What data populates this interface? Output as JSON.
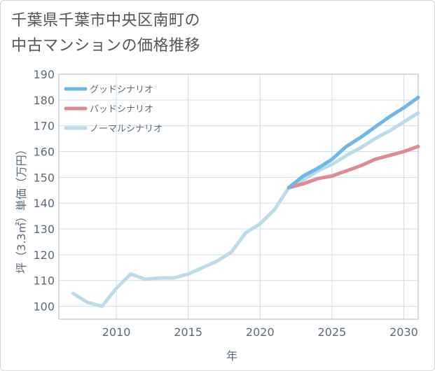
{
  "title": {
    "line1": "千葉県千葉市中央区南町の",
    "line2": "中古マンションの価格推移"
  },
  "chart_data": {
    "type": "line",
    "title": "千葉県千葉市中央区南町の中古マンションの価格推移",
    "xlabel": "年",
    "ylabel": "坪（3.3㎡）単価（万円）",
    "xlim": [
      2006,
      2031
    ],
    "ylim": [
      95,
      190
    ],
    "xticks": [
      2010,
      2015,
      2020,
      2025,
      2030
    ],
    "yticks": [
      100,
      110,
      120,
      130,
      140,
      150,
      160,
      170,
      180,
      190
    ],
    "grid": true,
    "legend_position": "top-left",
    "series": [
      {
        "name": "グッドシナリオ",
        "color": "#6cb8ea",
        "x": [
          2022,
          2023,
          2024,
          2025,
          2026,
          2027,
          2028,
          2029,
          2030,
          2031
        ],
        "values": [
          146,
          150.5,
          153.5,
          157,
          162,
          165.5,
          169.5,
          173.5,
          177,
          181
        ]
      },
      {
        "name": "バッドシナリオ",
        "color": "#e08a93",
        "x": [
          2022,
          2023,
          2024,
          2025,
          2026,
          2027,
          2028,
          2029,
          2030,
          2031
        ],
        "values": [
          146,
          147.5,
          149.5,
          150.5,
          152.5,
          154.5,
          157,
          158.5,
          160,
          162
        ]
      },
      {
        "name": "ノーマルシナリオ",
        "color": "#bcdcea",
        "x": [
          2007,
          2008,
          2009,
          2010,
          2011,
          2012,
          2013,
          2014,
          2015,
          2016,
          2017,
          2018,
          2019,
          2020,
          2021,
          2022,
          2023,
          2024,
          2025,
          2026,
          2027,
          2028,
          2029,
          2030,
          2031
        ],
        "values": [
          105,
          101.5,
          100,
          107,
          112.5,
          110.5,
          111,
          111,
          112.5,
          115,
          117.5,
          121,
          128.5,
          132,
          137.5,
          146,
          149,
          152.5,
          155,
          158.5,
          161.5,
          165,
          168,
          171.5,
          175
        ]
      }
    ]
  }
}
